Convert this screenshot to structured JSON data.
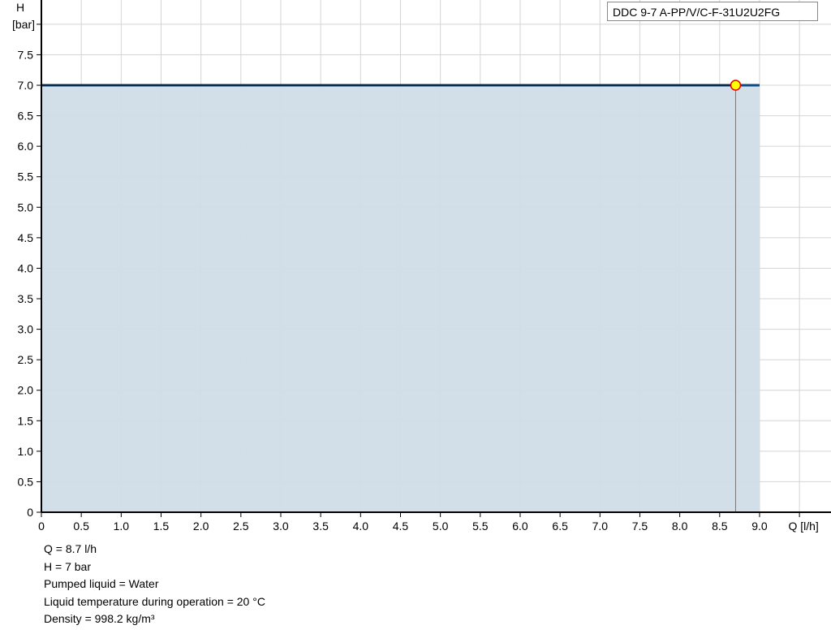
{
  "chart_data": {
    "type": "area",
    "title": "",
    "xlabel": "Q [l/h]",
    "ylabel_line1": "H",
    "ylabel_line2": "[bar]",
    "xlim": [
      0,
      9.9
    ],
    "ylim": [
      0,
      8.4
    ],
    "x_ticks": [
      "0",
      "0.5",
      "1.0",
      "1.5",
      "2.0",
      "2.5",
      "3.0",
      "3.5",
      "4.0",
      "4.5",
      "5.0",
      "5.5",
      "6.0",
      "6.5",
      "7.0",
      "7.5",
      "8.0",
      "8.5",
      "9.0"
    ],
    "y_ticks": [
      "0",
      "0.5",
      "1.0",
      "1.5",
      "2.0",
      "2.5",
      "3.0",
      "3.5",
      "4.0",
      "4.5",
      "5.0",
      "5.5",
      "6.0",
      "6.5",
      "7.0",
      "7.5"
    ],
    "grid": true,
    "legend": {
      "text": "DDC 9-7 A-PP/V/C-F-31U2U2FG",
      "placement": "top-right"
    },
    "series": [
      {
        "name": "DDC 9-7 A-PP/V/C-F-31U2U2FG",
        "x": [
          0,
          9.0
        ],
        "y": [
          7.0,
          7.0
        ],
        "color": "#0d4a85",
        "fill": "#d0dce7"
      }
    ],
    "operating_point": {
      "x": 8.7,
      "y": 7.0,
      "fill": "#ffff00",
      "stroke": "#e00000"
    }
  },
  "info": [
    "Q = 8.7 l/h",
    "H = 7 bar",
    "Pumped liquid = Water",
    "Liquid temperature during operation = 20 °C",
    "Density = 998.2 kg/m³"
  ]
}
